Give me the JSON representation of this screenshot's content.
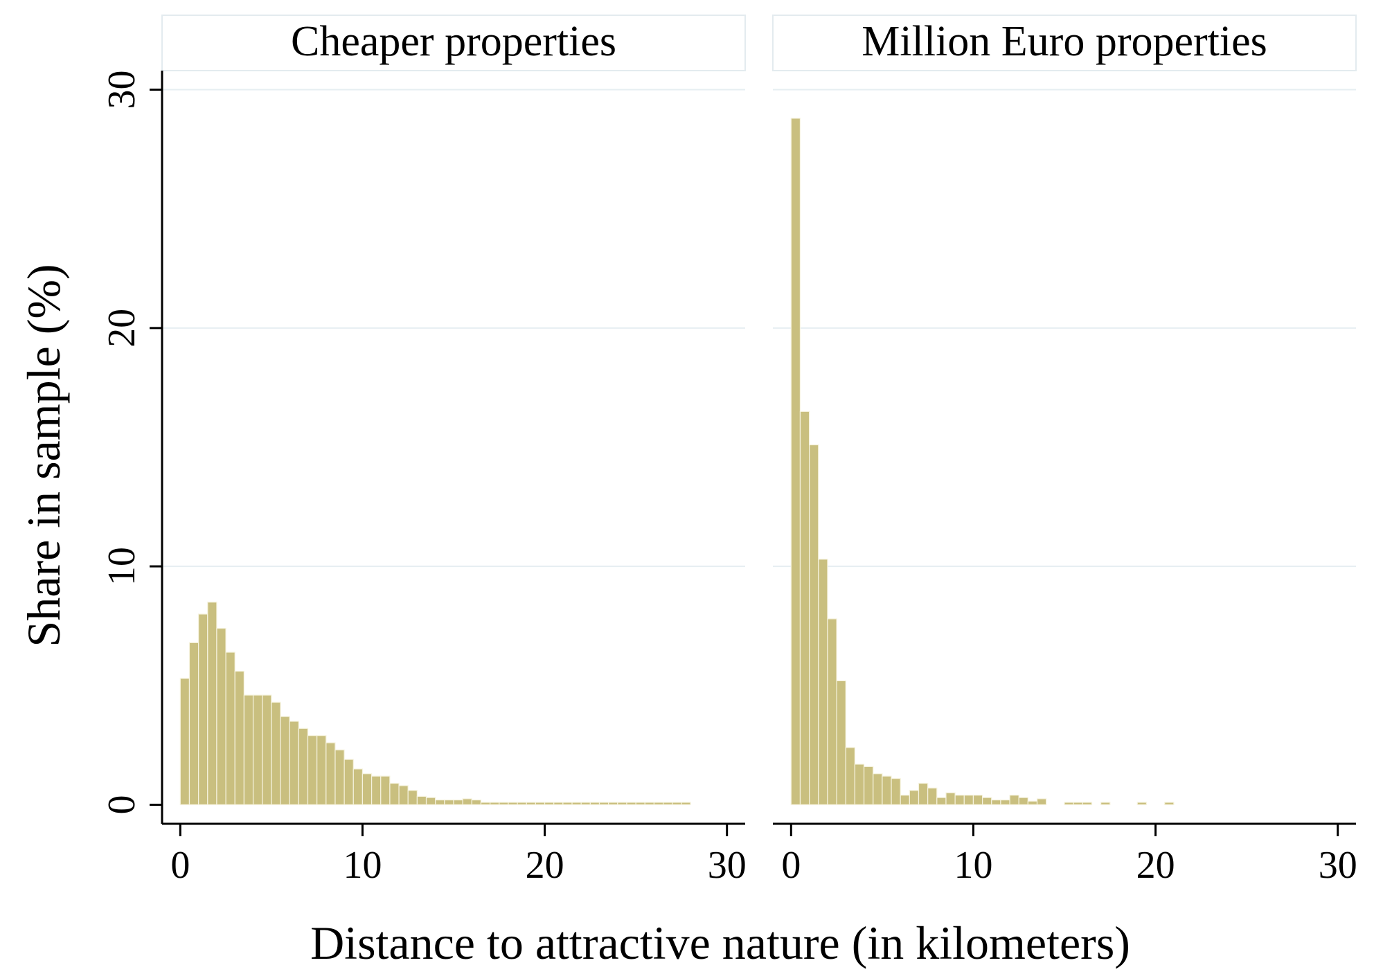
{
  "chart_data": {
    "type": "bar",
    "subtype": "histogram",
    "xlabel": "Distance to attractive nature (in kilometers)",
    "ylabel": "Share in sample (%)",
    "xlim": [
      -1,
      31
    ],
    "ylim": [
      -0.8,
      30.8
    ],
    "x_ticks": [
      0,
      10,
      20,
      30
    ],
    "x_tick_labels": [
      "0",
      "10",
      "20",
      "30"
    ],
    "y_ticks": [
      0,
      10,
      20,
      30
    ],
    "y_tick_labels": [
      "0",
      "10",
      "20",
      "30"
    ],
    "bin_width": 0.5,
    "bar_color": "#c9bf7f",
    "grid": true,
    "legend": "none",
    "panels": [
      {
        "title": "Cheaper properties",
        "bin_starts": [
          0,
          0.5,
          1,
          1.5,
          2,
          2.5,
          3,
          3.5,
          4,
          4.5,
          5,
          5.5,
          6,
          6.5,
          7,
          7.5,
          8,
          8.5,
          9,
          9.5,
          10,
          10.5,
          11,
          11.5,
          12,
          12.5,
          13,
          13.5,
          14,
          14.5,
          15,
          15.5,
          16,
          16.5,
          17,
          17.5,
          18,
          18.5,
          19,
          19.5,
          20,
          20.5,
          21,
          21.5,
          22,
          22.5,
          23,
          23.5,
          24,
          24.5,
          25,
          25.5,
          26,
          26.5,
          27,
          27.5
        ],
        "values": [
          5.3,
          6.8,
          8.0,
          8.5,
          7.4,
          6.4,
          5.6,
          4.6,
          4.6,
          4.6,
          4.3,
          3.7,
          3.5,
          3.2,
          2.9,
          2.9,
          2.6,
          2.3,
          1.9,
          1.5,
          1.3,
          1.2,
          1.2,
          0.9,
          0.8,
          0.6,
          0.35,
          0.3,
          0.2,
          0.2,
          0.2,
          0.25,
          0.2,
          0.1,
          0.1,
          0.1,
          0.1,
          0.1,
          0.1,
          0.1,
          0.1,
          0.1,
          0.1,
          0.1,
          0.1,
          0.1,
          0.1,
          0.1,
          0.1,
          0.1,
          0.1,
          0.1,
          0.1,
          0.1,
          0.1,
          0.1
        ]
      },
      {
        "title": "Million Euro properties",
        "bin_starts": [
          0,
          0.5,
          1,
          1.5,
          2,
          2.5,
          3,
          3.5,
          4,
          4.5,
          5,
          5.5,
          6,
          6.5,
          7,
          7.5,
          8,
          8.5,
          9,
          9.5,
          10,
          10.5,
          11,
          11.5,
          12,
          12.5,
          13,
          13.5,
          15,
          15.5,
          16,
          17,
          19,
          20.5
        ],
        "values": [
          28.8,
          16.5,
          15.1,
          10.3,
          7.8,
          5.2,
          2.4,
          1.7,
          1.6,
          1.3,
          1.2,
          1.1,
          0.4,
          0.6,
          0.9,
          0.7,
          0.3,
          0.5,
          0.4,
          0.4,
          0.4,
          0.3,
          0.2,
          0.2,
          0.4,
          0.3,
          0.15,
          0.25,
          0.1,
          0.1,
          0.1,
          0.1,
          0.1,
          0.1
        ]
      }
    ]
  }
}
